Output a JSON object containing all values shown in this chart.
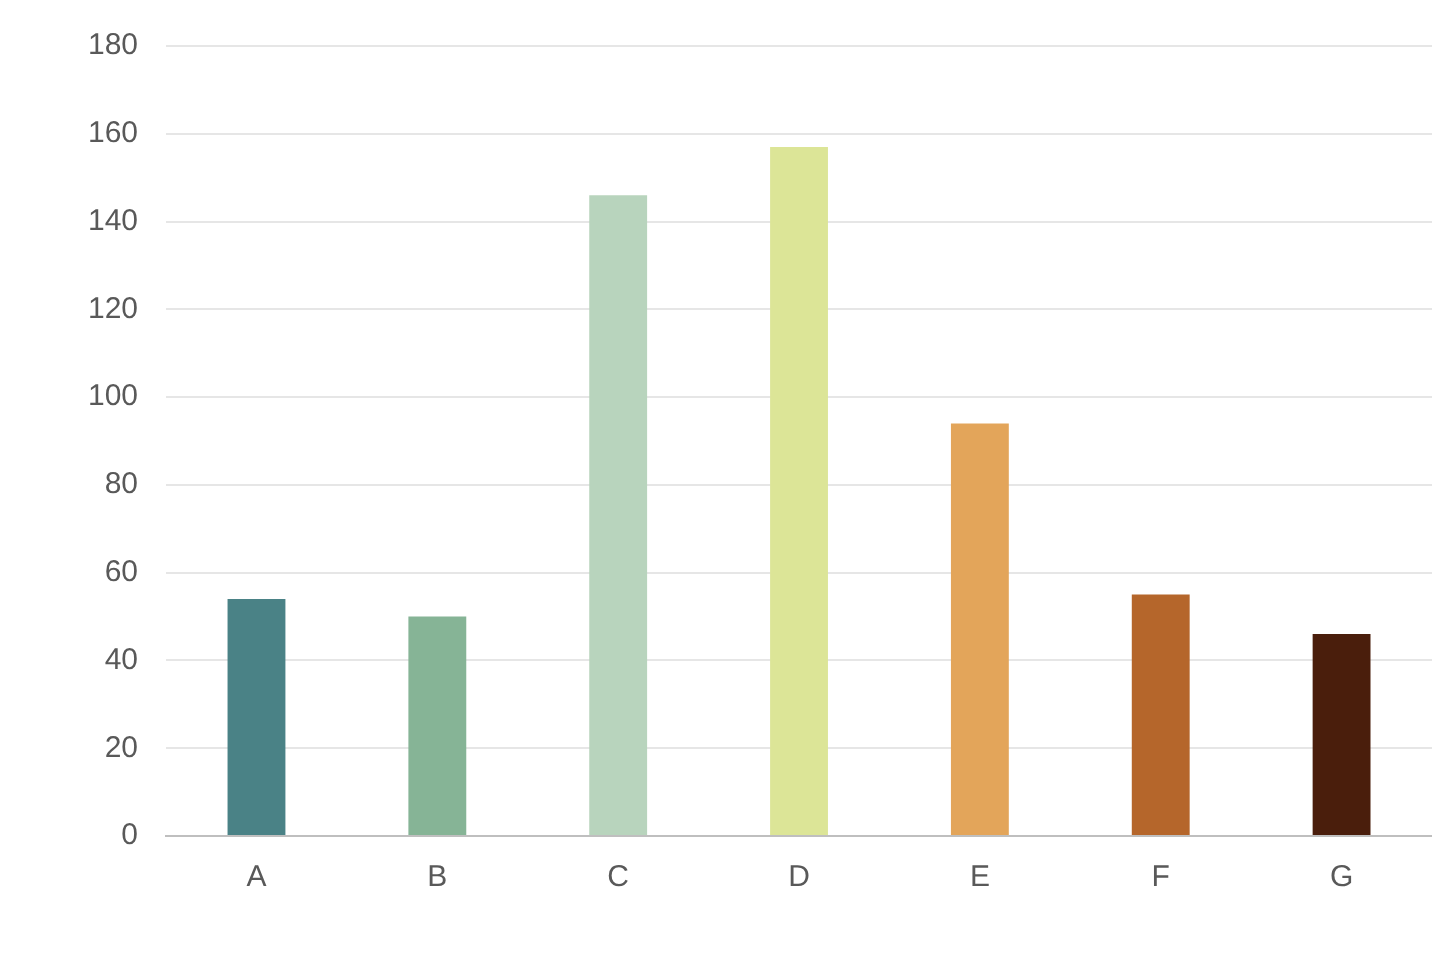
{
  "chart_data": {
    "type": "bar",
    "categories": [
      "A",
      "B",
      "C",
      "D",
      "E",
      "F",
      "G"
    ],
    "values": [
      54,
      50,
      146,
      157,
      94,
      55,
      46
    ],
    "colors": [
      "#4a8286",
      "#86b496",
      "#b8d4bd",
      "#dce597",
      "#e3a55a",
      "#b5662b",
      "#4a1e0c"
    ],
    "ylim": [
      0,
      180
    ],
    "yticks": [
      0,
      20,
      40,
      60,
      80,
      100,
      120,
      140,
      160,
      180
    ],
    "grid": "y",
    "legend": false
  }
}
